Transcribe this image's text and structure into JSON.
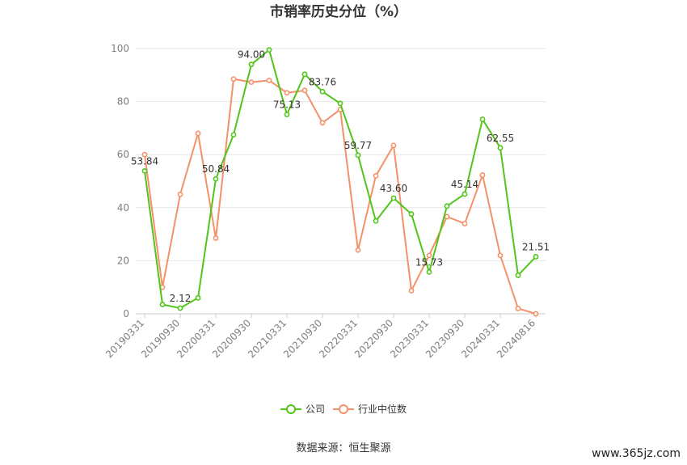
{
  "chart_data": {
    "type": "line",
    "title": "市销率历史分位（%）",
    "x_labels": [
      "20190331",
      "20190930",
      "20200331",
      "20200930",
      "20210331",
      "20210930",
      "20220331",
      "20220930",
      "20230331",
      "20230930",
      "20240331",
      "20240816"
    ],
    "ylim": [
      0,
      100
    ],
    "yticks": [
      0,
      20,
      40,
      60,
      80,
      100
    ],
    "grid": true,
    "legend_position": "bottom-center",
    "series": [
      {
        "name": "公司",
        "color": "#52c41a",
        "x": [
          0,
          0.5,
          1,
          1.5,
          2,
          2.5,
          3,
          3.5,
          4,
          4.5,
          5,
          5.5,
          6,
          6.5,
          7,
          7.5,
          8,
          8.5,
          9,
          9.5,
          10,
          10.5,
          11
        ],
        "values": [
          53.84,
          3.5,
          2.12,
          6,
          50.84,
          67.5,
          94.0,
          99.5,
          75.13,
          90.3,
          83.76,
          79.3,
          59.77,
          35,
          43.6,
          37.6,
          15.73,
          40.6,
          45.14,
          73.3,
          62.55,
          14.5,
          21.51
        ],
        "labels": [
          "53.84",
          "",
          "2.12",
          "",
          "50.84",
          "",
          "94.00",
          "",
          "75.13",
          "",
          "83.76",
          "",
          "59.77",
          "",
          "43.60",
          "",
          "15.73",
          "",
          "45.14",
          "",
          "62.55",
          "",
          "21.51"
        ]
      },
      {
        "name": "行业中位数",
        "color": "#f4916a",
        "x": [
          0,
          0.5,
          1,
          1.5,
          2,
          2.5,
          3,
          3.5,
          4,
          4.5,
          5,
          5.5,
          6,
          6.5,
          7,
          7.5,
          8,
          8.5,
          9,
          9.5,
          10,
          10.5,
          11
        ],
        "values": [
          60,
          10,
          45,
          68,
          28.5,
          88.5,
          87.3,
          88,
          83.3,
          84.2,
          72,
          77,
          24,
          52,
          63.5,
          8.7,
          22,
          36.6,
          34,
          52.3,
          22,
          2,
          0
        ],
        "labels": []
      }
    ]
  },
  "legend": {
    "company": "公司",
    "industry": "行业中位数"
  },
  "source": "数据来源：恒生聚源",
  "watermark": "www.365jz.com"
}
